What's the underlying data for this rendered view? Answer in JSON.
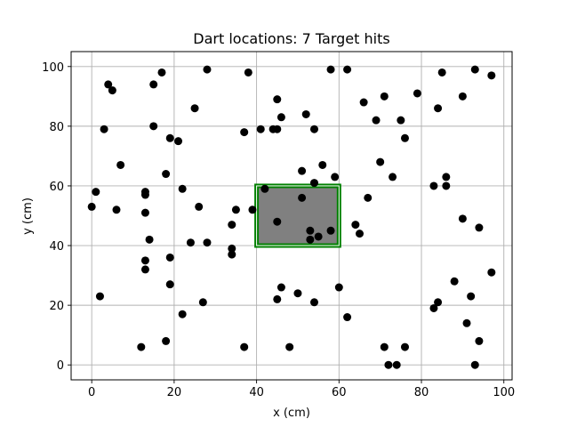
{
  "chart_data": {
    "type": "scatter",
    "title": "Dart locations: 7 Target hits",
    "xlabel": "x (cm)",
    "ylabel": "y (cm)",
    "xlim": [
      -5,
      102
    ],
    "ylim": [
      -5,
      105
    ],
    "xticks": [
      0,
      20,
      40,
      60,
      80,
      100
    ],
    "yticks": [
      0,
      20,
      40,
      60,
      80,
      100
    ],
    "grid": true,
    "colors": {
      "points": "#000000",
      "target_fill": "#808080",
      "target_edge": "#008000",
      "grid": "#b0b0b0"
    },
    "target": {
      "x0": 40,
      "x1": 60,
      "y0": 40,
      "y1": 60
    },
    "points": [
      [
        0,
        53
      ],
      [
        1,
        58
      ],
      [
        2,
        23
      ],
      [
        3,
        79
      ],
      [
        4,
        94
      ],
      [
        5,
        92
      ],
      [
        6,
        52
      ],
      [
        7,
        67
      ],
      [
        12,
        6
      ],
      [
        13,
        58
      ],
      [
        13,
        57
      ],
      [
        13,
        51
      ],
      [
        13,
        35
      ],
      [
        13,
        32
      ],
      [
        14,
        42
      ],
      [
        15,
        94
      ],
      [
        15,
        80
      ],
      [
        17,
        98
      ],
      [
        18,
        64
      ],
      [
        18,
        8
      ],
      [
        19,
        76
      ],
      [
        19,
        36
      ],
      [
        19,
        27
      ],
      [
        21,
        75
      ],
      [
        22,
        59
      ],
      [
        22,
        17
      ],
      [
        24,
        41
      ],
      [
        25,
        86
      ],
      [
        26,
        53
      ],
      [
        27,
        21
      ],
      [
        28,
        99
      ],
      [
        28,
        41
      ],
      [
        34,
        47
      ],
      [
        34,
        39
      ],
      [
        34,
        37
      ],
      [
        35,
        52
      ],
      [
        37,
        78
      ],
      [
        37,
        6
      ],
      [
        38,
        98
      ],
      [
        39,
        52
      ],
      [
        41,
        79
      ],
      [
        42,
        59
      ],
      [
        44,
        79
      ],
      [
        45,
        89
      ],
      [
        45,
        79
      ],
      [
        45,
        48
      ],
      [
        45,
        22
      ],
      [
        46,
        83
      ],
      [
        46,
        26
      ],
      [
        48,
        6
      ],
      [
        50,
        24
      ],
      [
        51,
        65
      ],
      [
        51,
        56
      ],
      [
        52,
        84
      ],
      [
        53,
        45
      ],
      [
        53,
        42
      ],
      [
        54,
        79
      ],
      [
        54,
        61
      ],
      [
        54,
        21
      ],
      [
        55,
        43
      ],
      [
        56,
        67
      ],
      [
        58,
        99
      ],
      [
        58,
        45
      ],
      [
        59,
        63
      ],
      [
        60,
        26
      ],
      [
        62,
        99
      ],
      [
        62,
        16
      ],
      [
        64,
        47
      ],
      [
        65,
        44
      ],
      [
        66,
        88
      ],
      [
        67,
        56
      ],
      [
        69,
        82
      ],
      [
        70,
        68
      ],
      [
        71,
        90
      ],
      [
        71,
        6
      ],
      [
        72,
        0
      ],
      [
        73,
        63
      ],
      [
        74,
        0
      ],
      [
        75,
        82
      ],
      [
        76,
        76
      ],
      [
        76,
        6
      ],
      [
        79,
        91
      ],
      [
        83,
        60
      ],
      [
        83,
        19
      ],
      [
        84,
        86
      ],
      [
        84,
        21
      ],
      [
        85,
        98
      ],
      [
        86,
        63
      ],
      [
        86,
        60
      ],
      [
        88,
        28
      ],
      [
        90,
        90
      ],
      [
        90,
        49
      ],
      [
        91,
        14
      ],
      [
        92,
        23
      ],
      [
        93,
        99
      ],
      [
        93,
        0
      ],
      [
        94,
        46
      ],
      [
        94,
        8
      ],
      [
        97,
        97
      ],
      [
        97,
        31
      ]
    ]
  }
}
